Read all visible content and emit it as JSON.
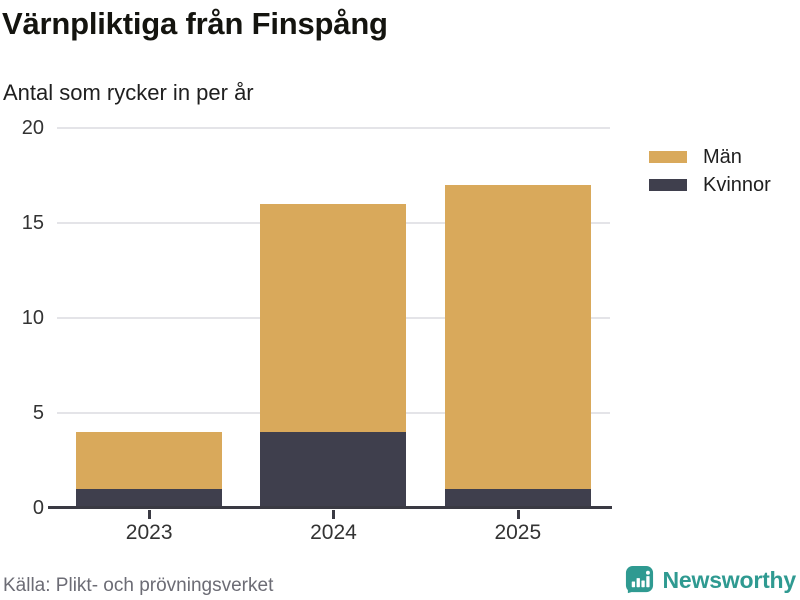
{
  "header": {
    "title": "Värnpliktiga från Finspång",
    "subtitle": "Antal som rycker in per år"
  },
  "legend": {
    "items": [
      {
        "label": "Män",
        "color": "#D9A95B"
      },
      {
        "label": "Kvinnor",
        "color": "#3F3F4D"
      }
    ]
  },
  "footer": {
    "source": "Källa: Plikt- och prövningsverket",
    "brand": {
      "name": "Newsworthy",
      "color": "#2F9A91"
    }
  },
  "colors": {
    "grid": "#E4E4E8",
    "axis": "#3A3A43",
    "men": "#D9A95B",
    "women": "#3F3F4D",
    "tick_text": "#333333",
    "muted_text": "#6C6C75"
  },
  "chart_data": {
    "type": "bar",
    "stacked": true,
    "title": "Värnpliktiga från Finspång",
    "subtitle": "Antal som rycker in per år",
    "categories": [
      "2023",
      "2024",
      "2025"
    ],
    "series": [
      {
        "name": "Kvinnor",
        "color": "#3F3F4D",
        "values": [
          1,
          4,
          1
        ]
      },
      {
        "name": "Män",
        "color": "#D9A95B",
        "values": [
          3,
          12,
          16
        ]
      }
    ],
    "stack_order_bottom_to_top": [
      "Kvinnor",
      "Män"
    ],
    "totals": [
      4,
      16,
      17
    ],
    "xlabel": "",
    "ylabel": "",
    "ylim": [
      0,
      20
    ],
    "yticks": [
      0,
      5,
      10,
      15,
      20
    ],
    "grid": true,
    "legend_position": "top-right",
    "legend_order": [
      "Män",
      "Kvinnor"
    ],
    "source": "Källa: Plikt- och prövningsverket"
  }
}
